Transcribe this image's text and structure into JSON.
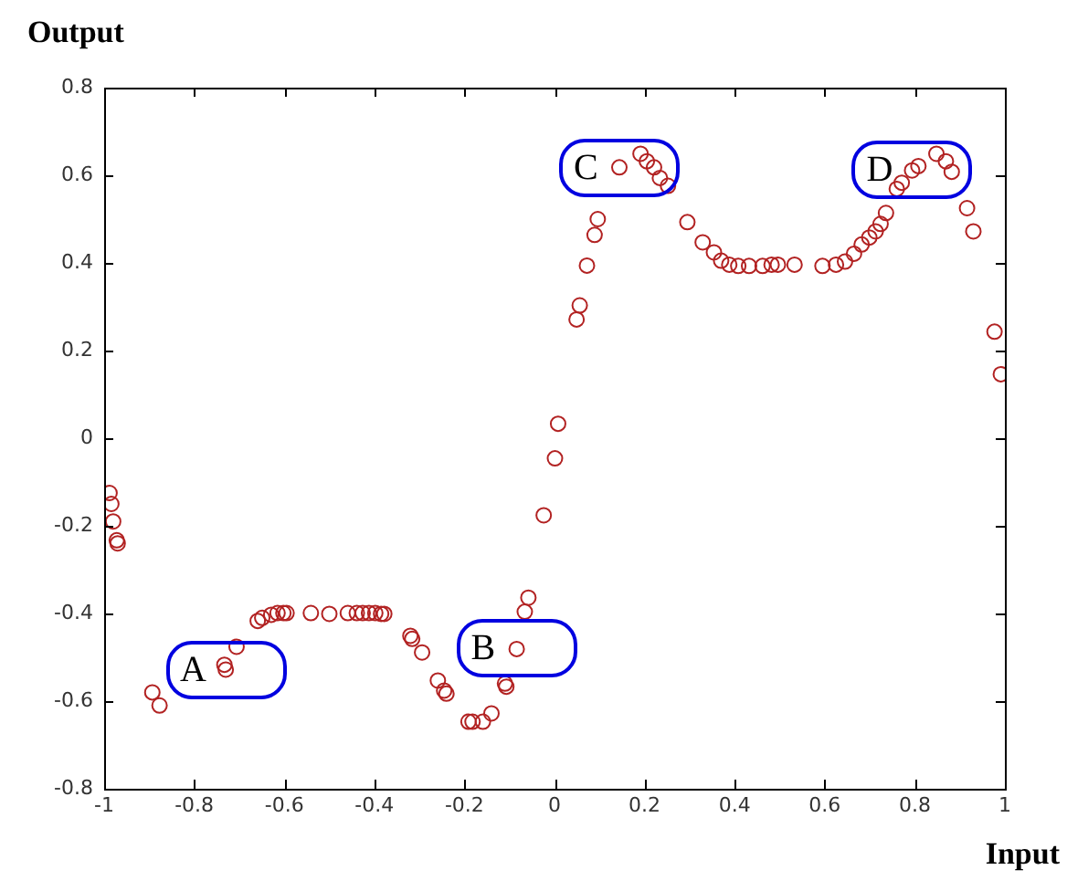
{
  "chart_data": {
    "type": "scatter",
    "xlabel": "Input",
    "ylabel": "Output",
    "x": [
      -0.988,
      -0.984,
      -0.98,
      -0.972,
      -0.97,
      -0.893,
      -0.877,
      -0.733,
      -0.73,
      -0.706,
      -0.659,
      -0.649,
      -0.629,
      -0.615,
      -0.602,
      -0.595,
      -0.541,
      -0.5,
      -0.459,
      -0.439,
      -0.426,
      -0.412,
      -0.398,
      -0.385,
      -0.378,
      -0.32,
      -0.316,
      -0.294,
      -0.259,
      -0.245,
      -0.24,
      -0.191,
      -0.182,
      -0.159,
      -0.14,
      -0.11,
      -0.107,
      -0.084,
      -0.066,
      -0.058,
      -0.024,
      0.001,
      0.008,
      0.049,
      0.056,
      0.072,
      0.089,
      0.096,
      0.144,
      0.191,
      0.205,
      0.221,
      0.234,
      0.252,
      0.295,
      0.329,
      0.354,
      0.37,
      0.388,
      0.408,
      0.432,
      0.462,
      0.482,
      0.496,
      0.533,
      0.595,
      0.625,
      0.645,
      0.665,
      0.682,
      0.699,
      0.713,
      0.724,
      0.736,
      0.76,
      0.771,
      0.794,
      0.808,
      0.848,
      0.869,
      0.882,
      0.916,
      0.93,
      0.977,
      0.991
    ],
    "series": [
      {
        "color": "#b22222",
        "values": [
          -0.125,
          -0.15,
          -0.19,
          -0.233,
          -0.24,
          -0.58,
          -0.61,
          -0.517,
          -0.528,
          -0.476,
          -0.417,
          -0.41,
          -0.403,
          -0.399,
          -0.399,
          -0.399,
          -0.399,
          -0.401,
          -0.399,
          -0.399,
          -0.399,
          -0.399,
          -0.399,
          -0.401,
          -0.401,
          -0.451,
          -0.458,
          -0.489,
          -0.553,
          -0.576,
          -0.583,
          -0.647,
          -0.647,
          -0.647,
          -0.628,
          -0.56,
          -0.567,
          -0.481,
          -0.396,
          -0.364,
          -0.176,
          -0.046,
          0.033,
          0.271,
          0.303,
          0.394,
          0.464,
          0.5,
          0.618,
          0.649,
          0.632,
          0.618,
          0.594,
          0.576,
          0.493,
          0.447,
          0.424,
          0.405,
          0.396,
          0.393,
          0.393,
          0.393,
          0.396,
          0.396,
          0.396,
          0.393,
          0.396,
          0.403,
          0.421,
          0.442,
          0.458,
          0.472,
          0.489,
          0.514,
          0.569,
          0.583,
          0.611,
          0.621,
          0.649,
          0.632,
          0.608,
          0.525,
          0.472,
          0.243,
          0.146
        ]
      }
    ],
    "xlim": [
      -1,
      1
    ],
    "xticks": [
      -1,
      -0.8,
      -0.6,
      -0.4,
      -0.2,
      0,
      0.2,
      0.4,
      0.6,
      0.8,
      1
    ],
    "ylim": [
      -0.8,
      0.8
    ],
    "yticks": [
      -0.8,
      -0.6,
      -0.4,
      -0.2,
      0,
      0.2,
      0.4,
      0.6,
      0.8
    ],
    "grid": false,
    "legend": false,
    "marker": "circle",
    "annotations": [
      {
        "text": "A",
        "x": -0.73,
        "y": -0.528
      },
      {
        "text": "B",
        "x": -0.084,
        "y": -0.481
      },
      {
        "text": "C",
        "x": 0.144,
        "y": 0.618
      },
      {
        "text": "D",
        "x": 0.794,
        "y": 0.611
      }
    ]
  }
}
